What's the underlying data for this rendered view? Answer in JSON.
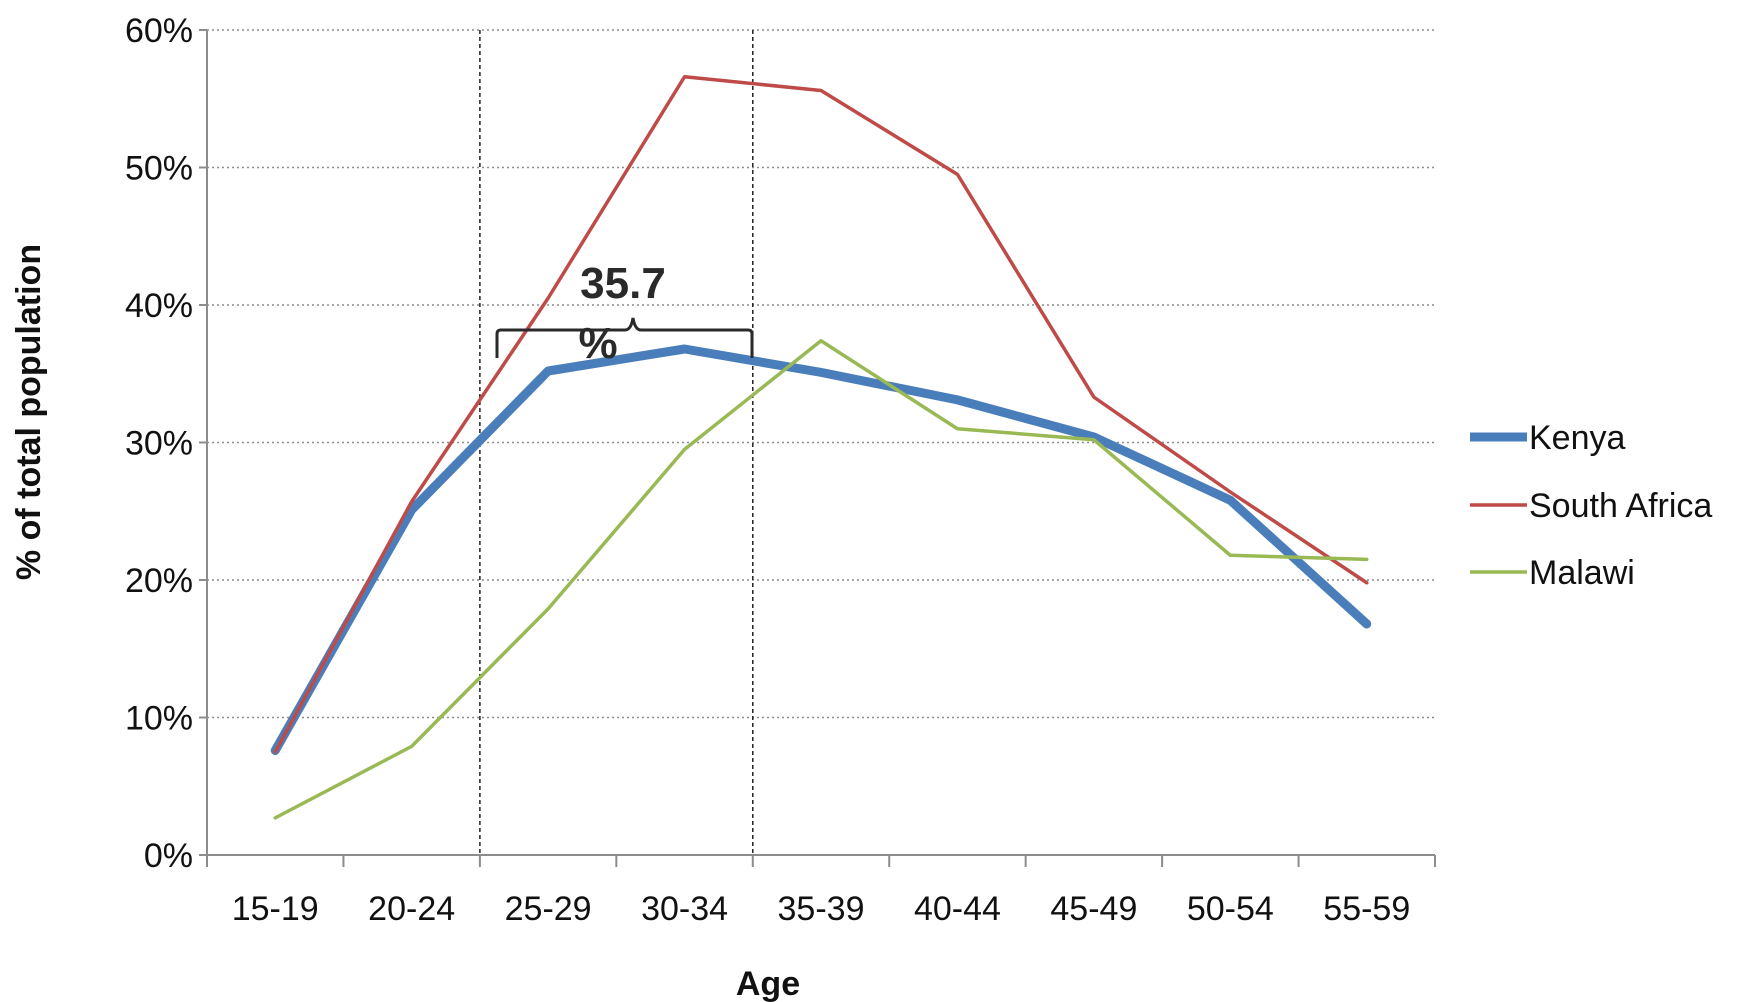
{
  "chart_data": {
    "type": "line",
    "xlabel": "Age",
    "ylabel": "% of total population",
    "categories": [
      "15-19",
      "20-24",
      "25-29",
      "30-34",
      "35-39",
      "40-44",
      "45-49",
      "50-54",
      "55-59"
    ],
    "ylim": [
      0,
      60
    ],
    "y_ticks": [
      "0%",
      "10%",
      "20%",
      "30%",
      "40%",
      "50%",
      "60%"
    ],
    "grid": "horizontal dotted",
    "legend_position": "right",
    "series": [
      {
        "name": "Kenya",
        "color": "#4a7ebb",
        "values": [
          7.6,
          25.1,
          35.2,
          36.8,
          35.1,
          33.1,
          30.4,
          25.8,
          16.8
        ]
      },
      {
        "name": "South Africa",
        "color": "#be4b48",
        "values": [
          7.5,
          25.7,
          40.5,
          56.6,
          55.6,
          49.5,
          33.3,
          26.4,
          19.8
        ]
      },
      {
        "name": "Malawi",
        "color": "#98b954",
        "values": [
          2.7,
          7.9,
          17.9,
          29.5,
          37.4,
          31.0,
          30.2,
          21.8,
          21.5
        ]
      }
    ],
    "annotation": {
      "text_line1": "35.7",
      "text_line2": "%"
    }
  }
}
